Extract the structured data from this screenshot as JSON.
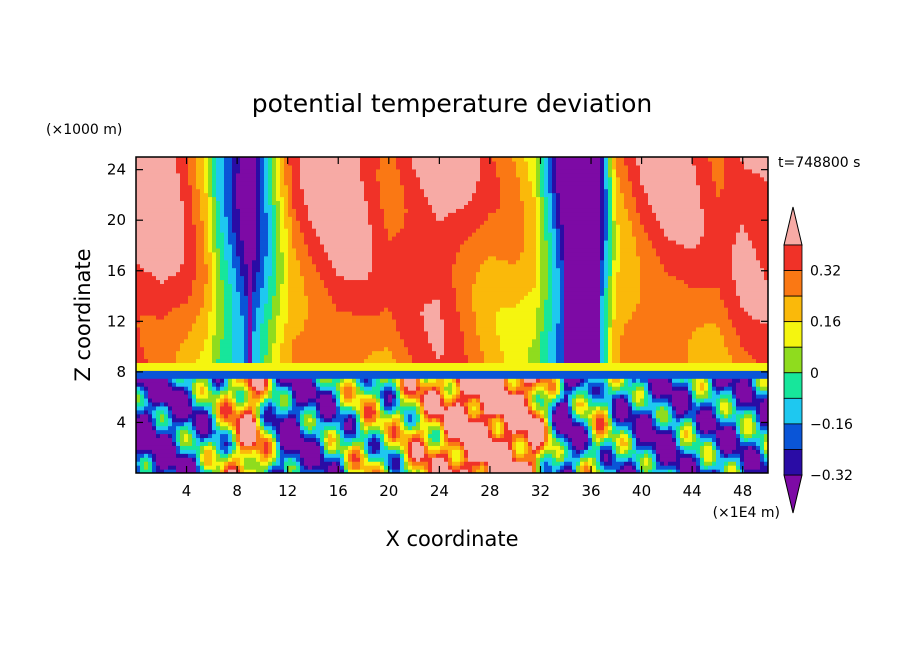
{
  "chart_data": {
    "type": "heatmap",
    "title": "potential temperature deviation",
    "xlabel": "X coordinate",
    "ylabel": "Z coordinate",
    "x_unit": "(×1E4 m)",
    "y_unit": "(×1000 m)",
    "time_label": "t=748800 s",
    "xlim": [
      0,
      50
    ],
    "ylim": [
      0,
      25
    ],
    "x_ticks": [
      "4",
      "8",
      "12",
      "16",
      "20",
      "24",
      "28",
      "32",
      "36",
      "40",
      "44",
      "48"
    ],
    "y_ticks": [
      "4",
      "8",
      "12",
      "16",
      "20",
      "24"
    ],
    "colorbar": {
      "levels": [
        -0.4,
        -0.32,
        -0.24,
        -0.16,
        -0.08,
        0,
        0.08,
        0.16,
        0.24,
        0.32,
        0.4
      ],
      "tick_labels": [
        "0.32",
        "0.16",
        "0",
        "−0.16",
        "−0.32"
      ],
      "colors": [
        "#7d0aa5",
        "#2a0ca5",
        "#0a55d7",
        "#1ec8f0",
        "#17e69b",
        "#8fdc1e",
        "#f5f50f",
        "#fab90a",
        "#fa7814",
        "#f03228",
        "#f7aaa5"
      ],
      "extend": "both"
    },
    "field_description_columns": {
      "x": [
        2,
        4,
        5.5,
        6.5,
        9,
        11.5,
        12.5,
        14,
        16,
        18,
        20,
        22,
        24,
        26,
        28,
        30,
        31.5,
        34,
        36.5,
        38,
        40,
        42,
        44,
        46,
        48
      ],
      "upper_layer_value": [
        0.36,
        0.26,
        0.12,
        -0.1,
        -0.44,
        0.05,
        0.2,
        0.28,
        0.34,
        0.3,
        0.22,
        0.3,
        0.36,
        0.28,
        0.18,
        0.14,
        0.06,
        -0.44,
        -0.44,
        0.12,
        0.24,
        0.3,
        0.28,
        0.22,
        0.32
      ],
      "lower_layer_value": [
        -0.4,
        -0.3,
        -0.2,
        -0.1,
        0.3,
        -0.35,
        -0.4,
        -0.3,
        -0.2,
        0.0,
        -0.1,
        0.1,
        0.2,
        0.4,
        0.4,
        0.36,
        0.3,
        -0.42,
        0.0,
        -0.2,
        -0.3,
        -0.35,
        -0.2,
        -0.3,
        -0.25
      ]
    }
  }
}
